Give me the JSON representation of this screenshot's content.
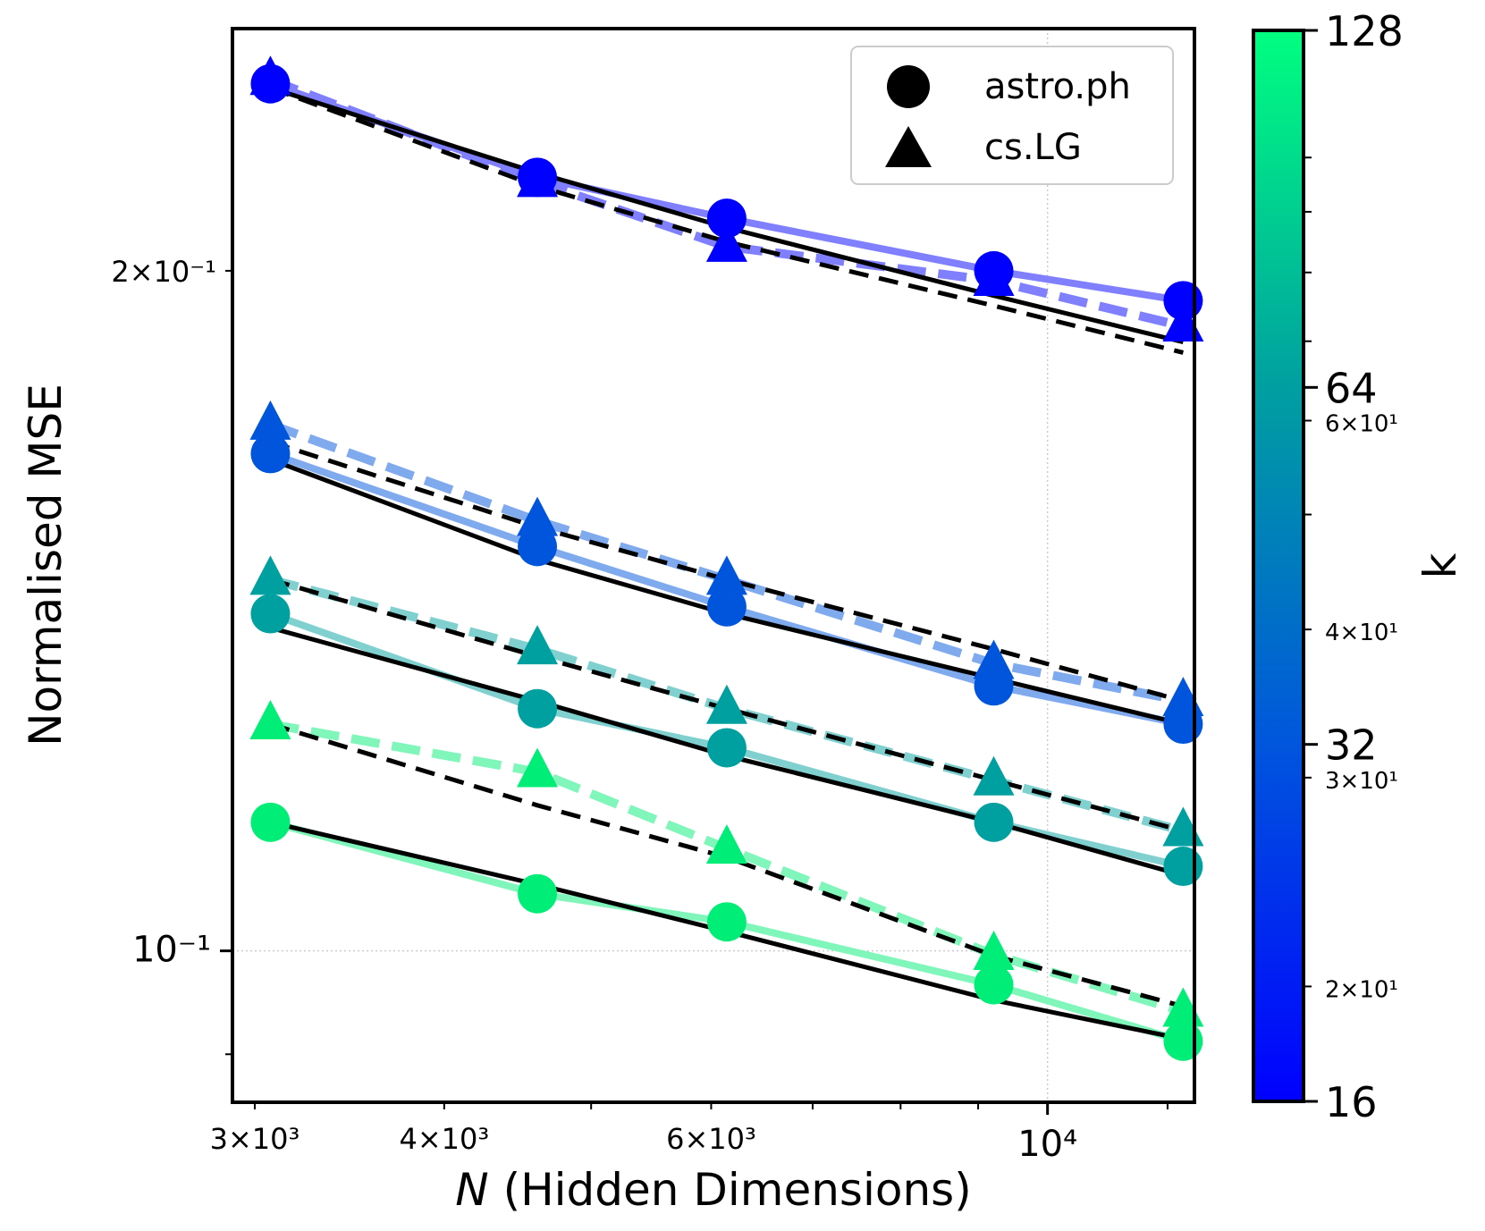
{
  "chart_data": {
    "type": "line",
    "xlabel_var": "N",
    "xlabel_rest": " (Hidden Dimensions)",
    "ylabel": "Normalised MSE",
    "xscale": "log",
    "yscale": "log",
    "xlim": [
      2900,
      12500
    ],
    "ylim": [
      0.0857,
      0.256
    ],
    "x": [
      3072,
      4608,
      6144,
      9216,
      12288
    ],
    "x_ticks": [
      {
        "value": 3000,
        "label": "3×10³"
      },
      {
        "value": 4000,
        "label": "4×10³"
      },
      {
        "value": 6000,
        "label": "6×10³"
      },
      {
        "value": 10000,
        "label": "10⁴"
      }
    ],
    "y_ticks": [
      {
        "value": 0.2,
        "label": "2×10⁻¹"
      },
      {
        "value": 0.1,
        "label": "10⁻¹"
      }
    ],
    "grid_x": [
      10000
    ],
    "grid_y": [
      0.1
    ],
    "legend": {
      "position": "top-right",
      "entries": [
        {
          "label": "astro.ph",
          "marker": "circle"
        },
        {
          "label": "cs.LG",
          "marker": "triangle"
        }
      ]
    },
    "colorbar": {
      "label": "k",
      "min": 16,
      "max": 128,
      "major_ticks": [
        {
          "value": 16,
          "label": "16"
        },
        {
          "value": 32,
          "label": "32"
        },
        {
          "value": 64,
          "label": "64"
        },
        {
          "value": 128,
          "label": "128"
        }
      ],
      "minor_ticks": [
        {
          "value": 20,
          "label": "2×10¹"
        },
        {
          "value": 30,
          "label": "3×10¹"
        },
        {
          "value": 40,
          "label": "4×10¹"
        },
        {
          "value": 60,
          "label": "6×10¹"
        }
      ],
      "unlabeled_minor": [
        50,
        70,
        80,
        90,
        100
      ]
    },
    "series": [
      {
        "name": "astro.ph k=16",
        "dataset": "astro.ph",
        "k": 16,
        "color": "#0000ff",
        "light_color": "#8080ff",
        "values": [
          0.242,
          0.22,
          0.211,
          0.2,
          0.194
        ],
        "fit": [
          0.241,
          0.221,
          0.209,
          0.195,
          0.186
        ]
      },
      {
        "name": "cs.LG k=16",
        "dataset": "cs.LG",
        "k": 16,
        "color": "#0000ff",
        "light_color": "#8080ff",
        "values": [
          0.243,
          0.219,
          0.205,
          0.198,
          0.189
        ],
        "fit": [
          0.241,
          0.218,
          0.206,
          0.193,
          0.184
        ]
      },
      {
        "name": "astro.ph k=32",
        "dataset": "astro.ph",
        "k": 32,
        "color": "#0055dd",
        "light_color": "#80aaee",
        "values": [
          0.166,
          0.151,
          0.142,
          0.131,
          0.126
        ],
        "fit": [
          0.165,
          0.149,
          0.141,
          0.132,
          0.126
        ]
      },
      {
        "name": "cs.LG k=32",
        "dataset": "cs.LG",
        "k": 32,
        "color": "#0055dd",
        "light_color": "#80aaee",
        "values": [
          0.171,
          0.155,
          0.146,
          0.134,
          0.129
        ],
        "fit": [
          0.168,
          0.154,
          0.146,
          0.136,
          0.129
        ]
      },
      {
        "name": "astro.ph k=64",
        "dataset": "astro.ph",
        "k": 64,
        "color": "#00a0a0",
        "light_color": "#80d0d0",
        "values": [
          0.141,
          0.128,
          0.123,
          0.114,
          0.109
        ],
        "fit": [
          0.139,
          0.129,
          0.122,
          0.114,
          0.108
        ]
      },
      {
        "name": "cs.LG k=64",
        "dataset": "cs.LG",
        "k": 64,
        "color": "#00a0a0",
        "light_color": "#80d0d0",
        "values": [
          0.146,
          0.136,
          0.128,
          0.119,
          0.113
        ],
        "fit": [
          0.146,
          0.135,
          0.128,
          0.119,
          0.113
        ]
      },
      {
        "name": "astro.ph k=128",
        "dataset": "astro.ph",
        "k": 128,
        "color": "#00ee77",
        "light_color": "#80f6bb",
        "values": [
          0.114,
          0.106,
          0.103,
          0.0966,
          0.0912
        ],
        "fit": [
          0.114,
          0.107,
          0.102,
          0.0951,
          0.0914
        ]
      },
      {
        "name": "cs.LG k=128",
        "dataset": "cs.LG",
        "k": 128,
        "color": "#00ee77",
        "light_color": "#80f6bb",
        "values": [
          0.126,
          0.12,
          0.111,
          0.0996,
          0.094
        ],
        "fit": [
          0.126,
          0.116,
          0.11,
          0.0995,
          0.0945
        ]
      }
    ]
  }
}
